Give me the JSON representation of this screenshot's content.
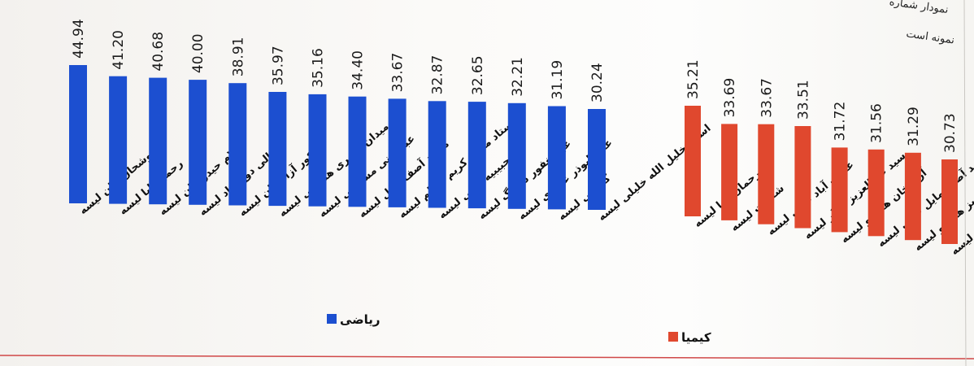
{
  "chart_data": [
    {
      "type": "bar",
      "color": "#1c4fd0",
      "categories": [
        "خوشحال خان لیسه",
        "رحمن بابا لیسه",
        "غلام حیدر خان لیسه",
        "عالی دوغ آباد لیسه",
        "نکور آزاد خان لیسه",
        "میدان ناصری هنگامی لیسه",
        "عبدالغنی مستغنی لیسه",
        "محمد آصف مایل لیسه",
        "استاد محمد کریم کاظم لیسه",
        "حبیبیه عالی لیسه",
        "عبدالغفور دوزنگ لیسه",
        "علی ابوذر غفاری لیسه",
        "گنگانی لیسه",
        "استاد خلیل الله خلیلی لیسه"
      ],
      "values": [
        44.94,
        41.2,
        40.68,
        40.0,
        38.91,
        35.97,
        35.16,
        34.4,
        33.67,
        32.87,
        32.65,
        32.21,
        31.19,
        30.24
      ],
      "value_labels": [
        "44.94",
        "41.20",
        "40.68",
        "40.00",
        "38.91",
        "35.97",
        "35.16",
        "34.40",
        "33.67",
        "32.87",
        "32.65",
        "32.21",
        "31.19",
        "30.24"
      ],
      "legend": "ریاضی"
    },
    {
      "type": "bar",
      "color": "#e0482e",
      "categories": [
        "رحمان بابا لیسه",
        "شفقت لیسه",
        "عارف آباد عالی لیسه",
        "سید عبدالعزیز شگر لیسه",
        "آزاد خان هنگانو لیسه",
        "محمد آصف مایل عالی لیسه",
        "شهرک عبدالعزیز هنگانو لیسه",
        "میدان ناصری لیسه"
      ],
      "values": [
        35.21,
        33.69,
        33.67,
        33.51,
        31.72,
        31.56,
        31.29,
        30.73
      ],
      "value_labels": [
        "35.21",
        "33.69",
        "33.67",
        "33.51",
        "31.72",
        "31.56",
        "31.29",
        "30.73"
      ],
      "legend": "کیمیا"
    }
  ],
  "corner": {
    "line1": "نمودار شماره",
    "line2": "نمونه است"
  }
}
